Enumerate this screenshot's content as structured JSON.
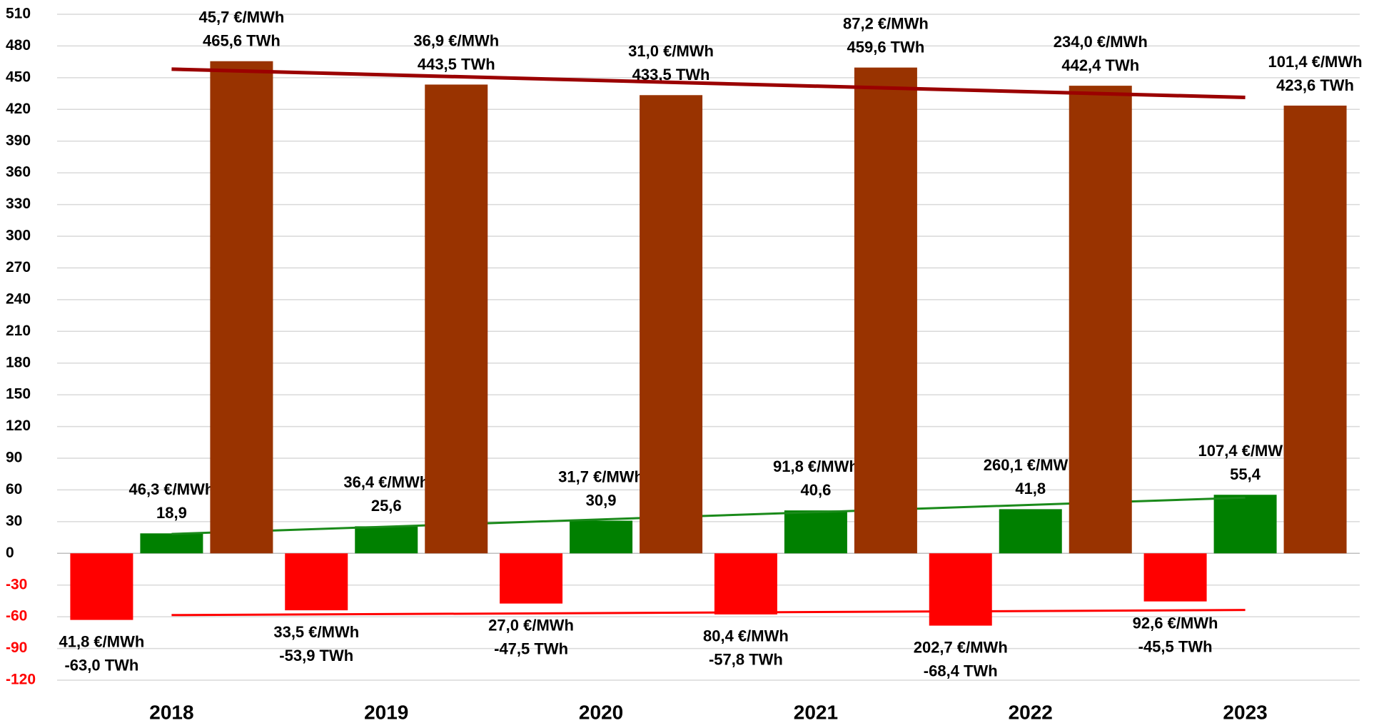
{
  "chart_data": {
    "type": "bar",
    "categories": [
      "2018",
      "2019",
      "2020",
      "2021",
      "2022",
      "2023"
    ],
    "series": [
      {
        "color": "#ff0000",
        "trend_color": "#ff0000",
        "values": [
          -63.0,
          -53.9,
          -47.5,
          -57.8,
          -68.4,
          -45.5
        ],
        "value_labels": [
          "-63,0 TWh",
          "-53,9 TWh",
          "-47,5 TWh",
          "-57,8 TWh",
          "-68,4 TWh",
          "-45,5 TWh"
        ],
        "price_labels": [
          "41,8 €/MWh",
          "33,5 €/MWh",
          "27,0 €/MWh",
          "80,4 €/MWh",
          "202,7 €/MWh",
          "92,6 €/MWh"
        ]
      },
      {
        "color": "#008000",
        "trend_color": "#1a8a1a",
        "values": [
          18.9,
          25.6,
          30.9,
          40.6,
          41.8,
          55.4
        ],
        "value_labels": [
          "18,9",
          "25,6",
          "30,9",
          "40,6",
          "41,8",
          "55,4"
        ],
        "price_labels": [
          "46,3 €/MWh",
          "36,4 €/MWh",
          "31,7 €/MWh",
          "91,8 €/MWh",
          "260,1 €/MWh",
          "107,4 €/MWh"
        ]
      },
      {
        "color": "#993300",
        "trend_color": "#9b0000",
        "values": [
          465.6,
          443.5,
          433.5,
          459.6,
          442.4,
          423.6
        ],
        "value_labels": [
          "465,6 TWh",
          "443,5 TWh",
          "433,5 TWh",
          "459,6 TWh",
          "442,4 TWh",
          "423,6 TWh"
        ],
        "price_labels": [
          "45,7 €/MWh",
          "36,9 €/MWh",
          "31,0 €/MWh",
          "87,2 €/MWh",
          "234,0 €/MWh",
          "101,4 €/MWh"
        ]
      }
    ],
    "ylim": [
      -120,
      510
    ],
    "yticks": [
      -120,
      -90,
      -60,
      -30,
      0,
      30,
      60,
      90,
      120,
      150,
      180,
      210,
      240,
      270,
      300,
      330,
      360,
      390,
      420,
      450,
      480,
      510
    ],
    "grid": true,
    "trendline": true,
    "negative_tick_color": "#ff0000"
  }
}
